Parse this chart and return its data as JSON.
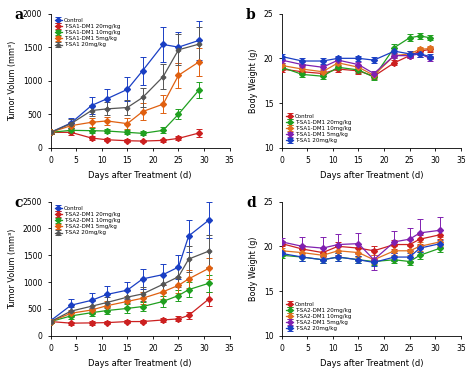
{
  "panel_a": {
    "title": "a",
    "xlabel": "Days after Treatment (d)",
    "ylabel": "Tumor Volum (mm³)",
    "ylim": [
      0,
      2000
    ],
    "yticks": [
      0,
      500,
      1000,
      1500,
      2000
    ],
    "xlim": [
      0,
      35
    ],
    "xticks": [
      0,
      5,
      10,
      15,
      20,
      25,
      30,
      35
    ],
    "legend_loc": "upper left",
    "series": [
      {
        "label": "Control",
        "color": "#1a3fc4",
        "marker": "D",
        "x": [
          0,
          4,
          8,
          11,
          15,
          18,
          22,
          25,
          29
        ],
        "y": [
          230,
          370,
          630,
          730,
          870,
          1150,
          1540,
          1500,
          1600
        ],
        "yerr": [
          20,
          80,
          120,
          150,
          180,
          210,
          260,
          230,
          290
        ]
      },
      {
        "label": "T-SA1-DM1 20mg/kg",
        "color": "#cc2020",
        "marker": "D",
        "x": [
          0,
          4,
          8,
          11,
          15,
          18,
          22,
          25,
          29
        ],
        "y": [
          230,
          230,
          145,
          120,
          105,
          100,
          110,
          140,
          220
        ],
        "yerr": [
          20,
          35,
          30,
          25,
          20,
          20,
          25,
          30,
          55
        ]
      },
      {
        "label": "T-SA1-DM1 10mg/kg",
        "color": "#20a020",
        "marker": "D",
        "x": [
          0,
          4,
          8,
          11,
          15,
          18,
          22,
          25,
          29
        ],
        "y": [
          230,
          260,
          255,
          250,
          230,
          215,
          260,
          500,
          860
        ],
        "yerr": [
          20,
          40,
          35,
          35,
          30,
          28,
          45,
          75,
          115
        ]
      },
      {
        "label": "T-SA1-DM1 5mg/kg",
        "color": "#e06010",
        "marker": "D",
        "x": [
          0,
          4,
          8,
          11,
          15,
          18,
          22,
          25,
          29
        ],
        "y": [
          230,
          330,
          380,
          400,
          360,
          540,
          650,
          1080,
          1280
        ],
        "yerr": [
          20,
          55,
          65,
          65,
          85,
          125,
          135,
          185,
          210
        ]
      },
      {
        "label": "T-SA1 20mg/kg",
        "color": "#555555",
        "marker": "P",
        "x": [
          0,
          4,
          8,
          11,
          15,
          18,
          22,
          25,
          29
        ],
        "y": [
          230,
          360,
          555,
          580,
          600,
          750,
          1060,
          1460,
          1545
        ],
        "yerr": [
          20,
          65,
          85,
          95,
          110,
          140,
          190,
          230,
          260
        ]
      }
    ]
  },
  "panel_b": {
    "title": "b",
    "xlabel": "Days after Treatment (d)",
    "ylabel": "Body Weight (g)",
    "ylim": [
      10,
      25
    ],
    "yticks": [
      10,
      15,
      20,
      25
    ],
    "xlim": [
      0,
      35
    ],
    "xticks": [
      0,
      5,
      10,
      15,
      20,
      25,
      30,
      35
    ],
    "legend_loc": "lower left",
    "series": [
      {
        "label": "Control",
        "color": "#cc2020",
        "marker": "D",
        "x": [
          0,
          4,
          8,
          11,
          15,
          18,
          22,
          25,
          27,
          29
        ],
        "y": [
          18.8,
          18.5,
          18.3,
          18.8,
          18.6,
          18.0,
          19.5,
          20.3,
          20.8,
          21.0
        ],
        "yerr": [
          0.3,
          0.3,
          0.3,
          0.3,
          0.3,
          0.3,
          0.3,
          0.3,
          0.3,
          0.3
        ]
      },
      {
        "label": "T-SA1-DM1 20mg/kg",
        "color": "#20a020",
        "marker": "D",
        "x": [
          0,
          4,
          8,
          11,
          15,
          18,
          22,
          25,
          27,
          29
        ],
        "y": [
          19.0,
          18.2,
          18.0,
          19.0,
          18.7,
          17.9,
          21.2,
          22.3,
          22.5,
          22.3
        ],
        "yerr": [
          0.3,
          0.3,
          0.3,
          0.3,
          0.3,
          0.3,
          0.4,
          0.4,
          0.3,
          0.3
        ]
      },
      {
        "label": "T-SA1-DM1 10mg/kg",
        "color": "#e07020",
        "marker": "D",
        "x": [
          0,
          4,
          8,
          11,
          15,
          18,
          22,
          25,
          27,
          29
        ],
        "y": [
          19.2,
          18.8,
          18.5,
          19.5,
          19.0,
          18.1,
          20.3,
          20.5,
          21.0,
          21.1
        ],
        "yerr": [
          0.3,
          0.3,
          0.3,
          0.3,
          0.3,
          0.3,
          0.3,
          0.3,
          0.3,
          0.3
        ]
      },
      {
        "label": "T-SA1-DM1 5mg/kg",
        "color": "#8020b0",
        "marker": "D",
        "x": [
          0,
          4,
          8,
          11,
          15,
          18,
          22,
          25,
          27,
          29
        ],
        "y": [
          19.8,
          19.3,
          19.0,
          19.8,
          19.3,
          18.3,
          20.3,
          20.3,
          20.5,
          20.0
        ],
        "yerr": [
          0.3,
          0.3,
          0.3,
          0.3,
          0.3,
          0.3,
          0.3,
          0.3,
          0.3,
          0.3
        ]
      },
      {
        "label": "T-SA1 20mg/kg",
        "color": "#1a3fc4",
        "marker": "D",
        "x": [
          0,
          4,
          8,
          11,
          15,
          18,
          22,
          25,
          27,
          29
        ],
        "y": [
          20.2,
          19.7,
          19.7,
          20.0,
          20.0,
          19.8,
          20.8,
          20.5,
          20.5,
          20.2
        ],
        "yerr": [
          0.3,
          0.3,
          0.3,
          0.3,
          0.3,
          0.3,
          0.3,
          0.3,
          0.3,
          0.3
        ]
      }
    ]
  },
  "panel_c": {
    "title": "c",
    "xlabel": "Days after Treatment (d)",
    "ylabel": "Tumor Volum (mm³)",
    "ylim": [
      0,
      2500
    ],
    "yticks": [
      0,
      500,
      1000,
      1500,
      2000,
      2500
    ],
    "xlim": [
      0,
      35
    ],
    "xticks": [
      0,
      5,
      10,
      15,
      20,
      25,
      30,
      35
    ],
    "legend_loc": "upper left",
    "series": [
      {
        "label": "Control",
        "color": "#1a3fc4",
        "marker": "D",
        "x": [
          0,
          4,
          8,
          11,
          15,
          18,
          22,
          25,
          27,
          31
        ],
        "y": [
          280,
          570,
          660,
          770,
          850,
          1060,
          1140,
          1280,
          1860,
          2160
        ],
        "yerr": [
          20,
          110,
          140,
          150,
          160,
          190,
          200,
          230,
          300,
          340
        ]
      },
      {
        "label": "T-SA2-DM1 20mg/kg",
        "color": "#cc2020",
        "marker": "D",
        "x": [
          0,
          4,
          8,
          11,
          15,
          18,
          22,
          25,
          27,
          31
        ],
        "y": [
          265,
          235,
          240,
          245,
          265,
          265,
          295,
          315,
          380,
          690
        ],
        "yerr": [
          20,
          28,
          32,
          32,
          32,
          32,
          38,
          45,
          60,
          130
        ]
      },
      {
        "label": "T-SA2-DM1 10mg/kg",
        "color": "#20a020",
        "marker": "D",
        "x": [
          0,
          4,
          8,
          11,
          15,
          18,
          22,
          25,
          27,
          31
        ],
        "y": [
          265,
          370,
          430,
          470,
          510,
          545,
          640,
          750,
          860,
          980
        ],
        "yerr": [
          20,
          55,
          65,
          70,
          78,
          85,
          95,
          110,
          140,
          160
        ]
      },
      {
        "label": "T-SA2-DM1 5mg/kg",
        "color": "#e06010",
        "marker": "D",
        "x": [
          0,
          4,
          8,
          11,
          15,
          18,
          22,
          25,
          27,
          31
        ],
        "y": [
          265,
          420,
          480,
          560,
          640,
          700,
          820,
          940,
          1060,
          1260
        ],
        "yerr": [
          20,
          65,
          75,
          85,
          95,
          110,
          130,
          150,
          170,
          195
        ]
      },
      {
        "label": "T-SA2 20mg/kg",
        "color": "#555555",
        "marker": "P",
        "x": [
          0,
          4,
          8,
          11,
          15,
          18,
          22,
          25,
          27,
          31
        ],
        "y": [
          265,
          460,
          550,
          620,
          720,
          780,
          960,
          1100,
          1430,
          1580
        ],
        "yerr": [
          20,
          75,
          90,
          100,
          115,
          130,
          165,
          190,
          250,
          290
        ]
      }
    ]
  },
  "panel_d": {
    "title": "d",
    "xlabel": "Days after Treatment (d)",
    "ylabel": "Body Weight (g)",
    "ylim": [
      10,
      25
    ],
    "yticks": [
      10,
      15,
      20,
      25
    ],
    "xlim": [
      0,
      35
    ],
    "xticks": [
      0,
      5,
      10,
      15,
      20,
      25,
      30,
      35
    ],
    "legend_loc": "lower left",
    "series": [
      {
        "label": "Control",
        "color": "#cc2020",
        "marker": "D",
        "x": [
          0,
          4,
          8,
          11,
          15,
          18,
          22,
          25,
          27,
          31
        ],
        "y": [
          20.3,
          19.7,
          19.3,
          20.0,
          19.8,
          19.5,
          20.2,
          20.2,
          20.8,
          21.3
        ],
        "yerr": [
          0.3,
          0.5,
          0.5,
          0.5,
          0.5,
          0.5,
          0.5,
          0.5,
          0.5,
          0.5
        ]
      },
      {
        "label": "T-SA2-DM1 20mg/kg",
        "color": "#20a020",
        "marker": "D",
        "x": [
          0,
          4,
          8,
          11,
          15,
          18,
          22,
          25,
          27,
          31
        ],
        "y": [
          19.0,
          18.8,
          18.5,
          18.8,
          18.5,
          18.3,
          18.5,
          18.3,
          19.0,
          19.8
        ],
        "yerr": [
          0.3,
          0.4,
          0.4,
          0.4,
          0.4,
          0.4,
          0.4,
          0.4,
          0.4,
          0.4
        ]
      },
      {
        "label": "T-SA2-DM1 10mg/kg",
        "color": "#e07020",
        "marker": "D",
        "x": [
          0,
          4,
          8,
          11,
          15,
          18,
          22,
          25,
          27,
          31
        ],
        "y": [
          19.5,
          19.3,
          19.0,
          19.5,
          19.3,
          18.5,
          19.5,
          19.5,
          20.0,
          20.5
        ],
        "yerr": [
          0.3,
          0.5,
          0.5,
          0.5,
          0.5,
          0.5,
          0.5,
          0.5,
          0.5,
          0.5
        ]
      },
      {
        "label": "T-SA2-DM1 5mg/kg",
        "color": "#8020b0",
        "marker": "D",
        "x": [
          0,
          4,
          8,
          11,
          15,
          18,
          22,
          25,
          27,
          31
        ],
        "y": [
          20.5,
          20.0,
          19.8,
          20.2,
          20.3,
          18.5,
          20.5,
          20.8,
          21.5,
          21.8
        ],
        "yerr": [
          0.4,
          1.0,
          1.2,
          1.2,
          1.2,
          1.2,
          1.2,
          1.2,
          1.5,
          1.5
        ]
      },
      {
        "label": "T-SA2 20mg/kg",
        "color": "#1a3fc4",
        "marker": "D",
        "x": [
          0,
          4,
          8,
          11,
          15,
          18,
          22,
          25,
          27,
          31
        ],
        "y": [
          19.2,
          18.8,
          18.5,
          18.8,
          18.5,
          18.2,
          18.8,
          18.8,
          19.8,
          20.3
        ],
        "yerr": [
          0.3,
          0.4,
          0.4,
          0.4,
          0.4,
          0.4,
          0.4,
          0.4,
          0.4,
          0.4
        ]
      }
    ]
  }
}
